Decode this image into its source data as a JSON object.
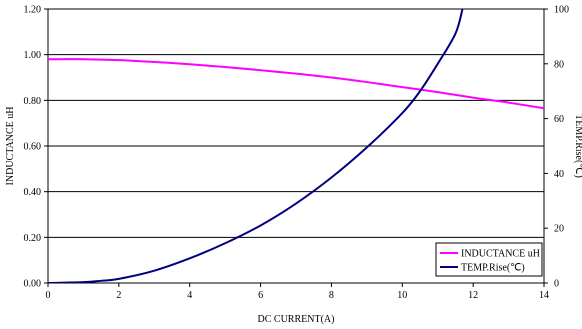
{
  "chart_data": {
    "type": "line",
    "title": "",
    "xlabel": "DC CURRENT(A)",
    "ylabel": "INDUCTANCE uH",
    "y2label": "TEMP.Rise(℃)",
    "xlim": [
      0,
      14
    ],
    "ylim": [
      0,
      1.2
    ],
    "y2lim": [
      0,
      100
    ],
    "x_ticks": [
      "0",
      "2",
      "4",
      "6",
      "8",
      "10",
      "12",
      "14"
    ],
    "y_ticks": [
      "0.00",
      "0.20",
      "0.40",
      "0.60",
      "0.80",
      "1.00",
      "1.20"
    ],
    "y2_ticks": [
      "0",
      "20",
      "40",
      "60",
      "80",
      "100"
    ],
    "grid": "horizontal",
    "legend_position": "bottom-right",
    "series": [
      {
        "name": "INDUCTANCE uH",
        "axis": "left",
        "color": "#ff00ff",
        "x": [
          0,
          1,
          2,
          3,
          4,
          5,
          6,
          7,
          8,
          9,
          10,
          11,
          12,
          13,
          14
        ],
        "y": [
          0.98,
          0.98,
          0.976,
          0.968,
          0.958,
          0.946,
          0.932,
          0.917,
          0.9,
          0.88,
          0.858,
          0.836,
          0.812,
          0.79,
          0.765
        ]
      },
      {
        "name": "TEMP.Rise(℃)",
        "axis": "right",
        "color": "#000080",
        "x": [
          0,
          1,
          1.5,
          2,
          3,
          4,
          5,
          6,
          7,
          8,
          9,
          10,
          10.5,
          11,
          11.5,
          11.7
        ],
        "y": [
          0,
          0.3,
          0.8,
          1.5,
          4.5,
          9,
          14.5,
          21,
          29,
          38.5,
          49.5,
          62,
          70,
          80,
          91,
          100
        ]
      }
    ]
  }
}
